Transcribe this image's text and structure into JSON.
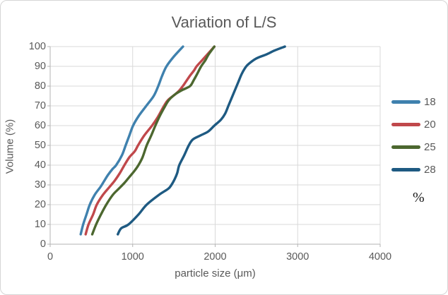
{
  "chart": {
    "title": "Variation of L/S"
  },
  "colors": {
    "text": "#595959",
    "gridline": "#d9d9d9",
    "axis": "#b3b3b3",
    "figure_border": "#d5d5d5",
    "background": "#ffffff",
    "legend_percent_text": "#1a1a1a"
  },
  "legend": {
    "items": [
      {
        "label": "18",
        "color": "#3f81ae"
      },
      {
        "label": "20",
        "color": "#c0484b"
      },
      {
        "label": "25",
        "color": "#4c672f"
      },
      {
        "label": "28",
        "color": "#1e5a82"
      }
    ],
    "suffix": "%"
  },
  "chart_data": {
    "type": "line",
    "title": "Variation of L/S",
    "xlabel": "particle size (μm)",
    "ylabel": "Volume (%)",
    "xlim": [
      0,
      4000
    ],
    "ylim": [
      0,
      100
    ],
    "xticks": [
      0,
      1000,
      2000,
      3000,
      4000
    ],
    "yticks": [
      0,
      10,
      20,
      30,
      40,
      50,
      60,
      70,
      80,
      90,
      100
    ],
    "grid": true,
    "legend_position": "right",
    "legend_title": "%",
    "series": [
      {
        "name": "18",
        "color": "#3f81ae",
        "points": [
          [
            370,
            5
          ],
          [
            400,
            10
          ],
          [
            440,
            15
          ],
          [
            480,
            20
          ],
          [
            540,
            25
          ],
          [
            610,
            29
          ],
          [
            655,
            32
          ],
          [
            700,
            35
          ],
          [
            755,
            38
          ],
          [
            800,
            40
          ],
          [
            870,
            45
          ],
          [
            915,
            50
          ],
          [
            960,
            55
          ],
          [
            1005,
            60
          ],
          [
            1075,
            65
          ],
          [
            1165,
            70
          ],
          [
            1255,
            75
          ],
          [
            1310,
            80
          ],
          [
            1355,
            85
          ],
          [
            1410,
            90
          ],
          [
            1500,
            95
          ],
          [
            1610,
            100
          ]
        ]
      },
      {
        "name": "20",
        "color": "#c0484b",
        "points": [
          [
            430,
            5
          ],
          [
            465,
            10
          ],
          [
            520,
            15
          ],
          [
            565,
            20
          ],
          [
            640,
            25
          ],
          [
            720,
            29
          ],
          [
            780,
            32
          ],
          [
            845,
            36
          ],
          [
            900,
            40
          ],
          [
            960,
            44
          ],
          [
            1025,
            47
          ],
          [
            1065,
            50
          ],
          [
            1140,
            55
          ],
          [
            1235,
            60
          ],
          [
            1300,
            64
          ],
          [
            1380,
            70
          ],
          [
            1430,
            73
          ],
          [
            1520,
            76
          ],
          [
            1570,
            78
          ],
          [
            1625,
            81
          ],
          [
            1690,
            85
          ],
          [
            1745,
            88
          ],
          [
            1775,
            90
          ],
          [
            1840,
            93
          ],
          [
            1905,
            96
          ],
          [
            1990,
            100
          ]
        ]
      },
      {
        "name": "25",
        "color": "#4c672f",
        "points": [
          [
            510,
            5
          ],
          [
            557,
            10
          ],
          [
            615,
            15
          ],
          [
            680,
            20
          ],
          [
            760,
            25
          ],
          [
            830,
            28
          ],
          [
            900,
            31
          ],
          [
            960,
            34
          ],
          [
            1020,
            37
          ],
          [
            1070,
            40
          ],
          [
            1120,
            44
          ],
          [
            1170,
            50
          ],
          [
            1225,
            55
          ],
          [
            1275,
            60
          ],
          [
            1330,
            65
          ],
          [
            1395,
            70
          ],
          [
            1440,
            73
          ],
          [
            1520,
            76
          ],
          [
            1600,
            78
          ],
          [
            1695,
            80
          ],
          [
            1740,
            83
          ],
          [
            1780,
            86
          ],
          [
            1830,
            90
          ],
          [
            1880,
            93
          ],
          [
            1920,
            96
          ],
          [
            1990,
            100
          ]
        ]
      },
      {
        "name": "28",
        "color": "#1e5a82",
        "points": [
          [
            820,
            5
          ],
          [
            860,
            8
          ],
          [
            950,
            10
          ],
          [
            1070,
            15
          ],
          [
            1170,
            20
          ],
          [
            1320,
            25
          ],
          [
            1430,
            28
          ],
          [
            1470,
            30
          ],
          [
            1510,
            33
          ],
          [
            1540,
            36
          ],
          [
            1565,
            40
          ],
          [
            1625,
            45
          ],
          [
            1680,
            50
          ],
          [
            1730,
            53
          ],
          [
            1820,
            55
          ],
          [
            1915,
            57
          ],
          [
            1990,
            60
          ],
          [
            2070,
            63
          ],
          [
            2120,
            66
          ],
          [
            2160,
            70
          ],
          [
            2200,
            74
          ],
          [
            2240,
            78
          ],
          [
            2280,
            82
          ],
          [
            2320,
            86
          ],
          [
            2360,
            89
          ],
          [
            2400,
            91
          ],
          [
            2500,
            94
          ],
          [
            2620,
            96
          ],
          [
            2720,
            98
          ],
          [
            2845,
            100
          ]
        ]
      }
    ]
  }
}
